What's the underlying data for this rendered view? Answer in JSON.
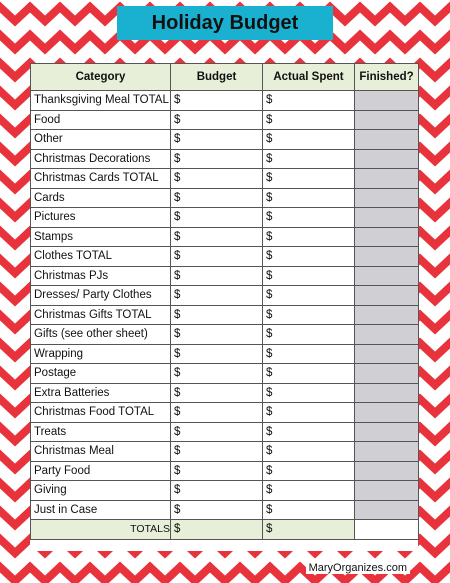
{
  "title": "Holiday Budget",
  "headers": [
    "Category",
    "Budget",
    "Actual Spent",
    "Finished?"
  ],
  "rows": [
    {
      "category": "Thanksgiving Meal TOTAL",
      "indent": false,
      "budget": "$",
      "actual": "$"
    },
    {
      "category": "Food",
      "indent": true,
      "budget": "$",
      "actual": "$"
    },
    {
      "category": "Other",
      "indent": true,
      "budget": "$",
      "actual": "$"
    },
    {
      "category": "Christmas Decorations",
      "indent": false,
      "budget": "$",
      "actual": "$"
    },
    {
      "category": "Christmas Cards TOTAL",
      "indent": false,
      "budget": "$",
      "actual": "$"
    },
    {
      "category": "Cards",
      "indent": true,
      "budget": "$",
      "actual": "$"
    },
    {
      "category": "Pictures",
      "indent": true,
      "budget": "$",
      "actual": "$"
    },
    {
      "category": "Stamps",
      "indent": true,
      "budget": "$",
      "actual": "$"
    },
    {
      "category": "Clothes TOTAL",
      "indent": false,
      "budget": "$",
      "actual": "$"
    },
    {
      "category": "Christmas PJs",
      "indent": true,
      "budget": "$",
      "actual": "$"
    },
    {
      "category": "Dresses/ Party Clothes",
      "indent": true,
      "budget": "$",
      "actual": "$"
    },
    {
      "category": "Christmas Gifts TOTAL",
      "indent": false,
      "budget": "$",
      "actual": "$"
    },
    {
      "category": "Gifts (see other sheet)",
      "indent": true,
      "budget": "$",
      "actual": "$"
    },
    {
      "category": "Wrapping",
      "indent": true,
      "budget": "$",
      "actual": "$"
    },
    {
      "category": "Postage",
      "indent": true,
      "budget": "$",
      "actual": "$"
    },
    {
      "category": "Extra Batteries",
      "indent": true,
      "budget": "$",
      "actual": "$"
    },
    {
      "category": "Christmas Food TOTAL",
      "indent": false,
      "budget": "$",
      "actual": "$"
    },
    {
      "category": "Treats",
      "indent": true,
      "budget": "$",
      "actual": "$"
    },
    {
      "category": "Christmas Meal",
      "indent": true,
      "budget": "$",
      "actual": "$"
    },
    {
      "category": "Party Food",
      "indent": true,
      "budget": "$",
      "actual": "$"
    },
    {
      "category": "Giving",
      "indent": false,
      "budget": "$",
      "actual": "$"
    },
    {
      "category": "Just in Case",
      "indent": false,
      "budget": "$",
      "actual": "$"
    }
  ],
  "totals": {
    "label": "TOTALS",
    "budget": "$",
    "actual": "$"
  },
  "footer": "MaryOrganizes.com",
  "colors": {
    "chevron": "#e8323c",
    "banner": "#1ab1d1",
    "header_bg": "#e8efd9",
    "finished_bg": "#d0d0d4"
  }
}
